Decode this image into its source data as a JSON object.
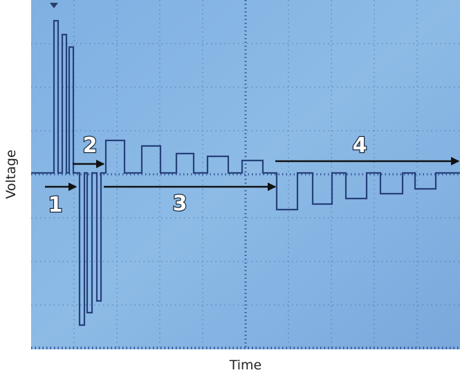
{
  "axes": {
    "x_label": "Time",
    "y_label": "Voltage"
  },
  "annotations": [
    "1",
    "2",
    "3",
    "4"
  ]
}
